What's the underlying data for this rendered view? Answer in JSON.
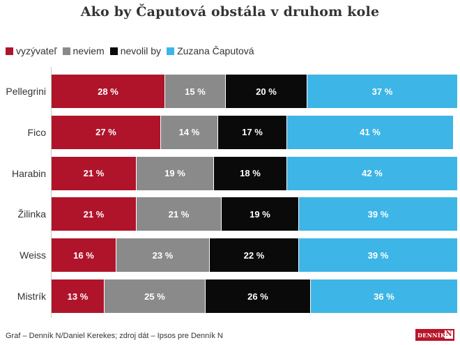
{
  "chart_data": {
    "type": "bar",
    "orientation": "horizontal",
    "stacked": true,
    "title": "Ako by Čaputová obstála v druhom kole",
    "categories": [
      "Pellegrini",
      "Fico",
      "Harabin",
      "Žilinka",
      "Weiss",
      "Mistrík"
    ],
    "series": [
      {
        "name": "vyzývateľ",
        "color": "#b0142a",
        "values": [
          28,
          27,
          21,
          21,
          16,
          13
        ]
      },
      {
        "name": "neviem",
        "color": "#8a8a8a",
        "values": [
          15,
          14,
          19,
          21,
          23,
          25
        ]
      },
      {
        "name": "nevolil by",
        "color": "#0a0a0a",
        "values": [
          20,
          17,
          18,
          19,
          22,
          26
        ]
      },
      {
        "name": "Zuzana Čaputová",
        "color": "#3db5e6",
        "values": [
          37,
          41,
          42,
          39,
          39,
          36
        ]
      }
    ],
    "value_suffix": " %",
    "xlim": [
      0,
      100
    ],
    "legend_position": "top-left",
    "grid": false
  },
  "footer": {
    "source": "Graf – Denník N/Daniel Kerekes; zdroj dát – Ipsos pre Denník N",
    "logo_text": "DENNÍK",
    "logo_mark": "N"
  }
}
